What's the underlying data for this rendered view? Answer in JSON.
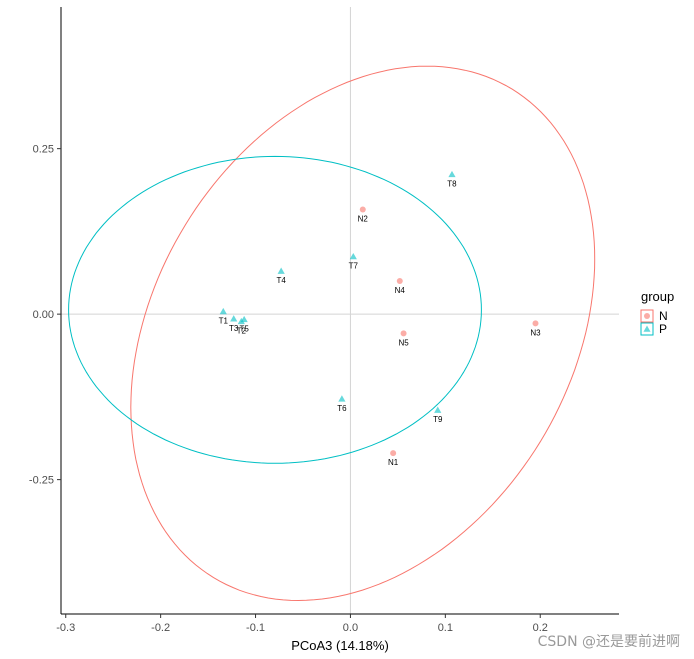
{
  "chart_data": {
    "type": "scatter",
    "title": "",
    "xlabel": "PCoA3 (14.18%)",
    "ylabel": "",
    "xlim": [
      -0.305,
      0.283
    ],
    "ylim": [
      -0.453,
      0.464
    ],
    "x_ticks": [
      -0.3,
      -0.2,
      -0.1,
      0.0,
      0.1,
      0.2
    ],
    "x_tick_labels": [
      "-0.3",
      "-0.2",
      "-0.1",
      "0.0",
      "0.1",
      "0.2"
    ],
    "y_ticks": [
      -0.25,
      0.0,
      0.25
    ],
    "y_tick_labels": [
      "-0.25",
      "0.00",
      "0.25"
    ],
    "grid": false,
    "reference_lines": {
      "x": 0,
      "y": 0
    },
    "legend": {
      "title": "group",
      "position": "right"
    },
    "series": [
      {
        "name": "N",
        "color": "#F8766D",
        "marker": "circle",
        "points": [
          {
            "label": "N1",
            "x": 0.045,
            "y": -0.21
          },
          {
            "label": "N2",
            "x": 0.013,
            "y": 0.158
          },
          {
            "label": "N3",
            "x": 0.195,
            "y": -0.014
          },
          {
            "label": "N4",
            "x": 0.052,
            "y": 0.05
          },
          {
            "label": "N5",
            "x": 0.056,
            "y": -0.029
          }
        ],
        "ellipse": {
          "cx": 0.013,
          "cy": -0.029,
          "rx": 0.23,
          "ry": 0.412,
          "angle_deg": -14
        }
      },
      {
        "name": "P",
        "color": "#00BFC4",
        "marker": "triangle",
        "points": [
          {
            "label": "T1",
            "x": -0.134,
            "y": 0.004
          },
          {
            "label": "T2",
            "x": -0.115,
            "y": -0.011
          },
          {
            "label": "T3",
            "x": -0.123,
            "y": -0.007
          },
          {
            "label": "T4",
            "x": -0.073,
            "y": 0.065
          },
          {
            "label": "T5",
            "x": -0.112,
            "y": -0.008
          },
          {
            "label": "T6",
            "x": -0.009,
            "y": -0.128
          },
          {
            "label": "T7",
            "x": 0.003,
            "y": 0.087
          },
          {
            "label": "T8",
            "x": 0.107,
            "y": 0.211
          },
          {
            "label": "T9",
            "x": 0.092,
            "y": -0.145
          }
        ],
        "ellipse": {
          "cx": -0.0795,
          "cy": 0.0065,
          "rx": 0.2175,
          "ry": 0.2318,
          "angle_deg": 0
        }
      }
    ]
  },
  "watermark": "CSDN @还是要前进啊"
}
